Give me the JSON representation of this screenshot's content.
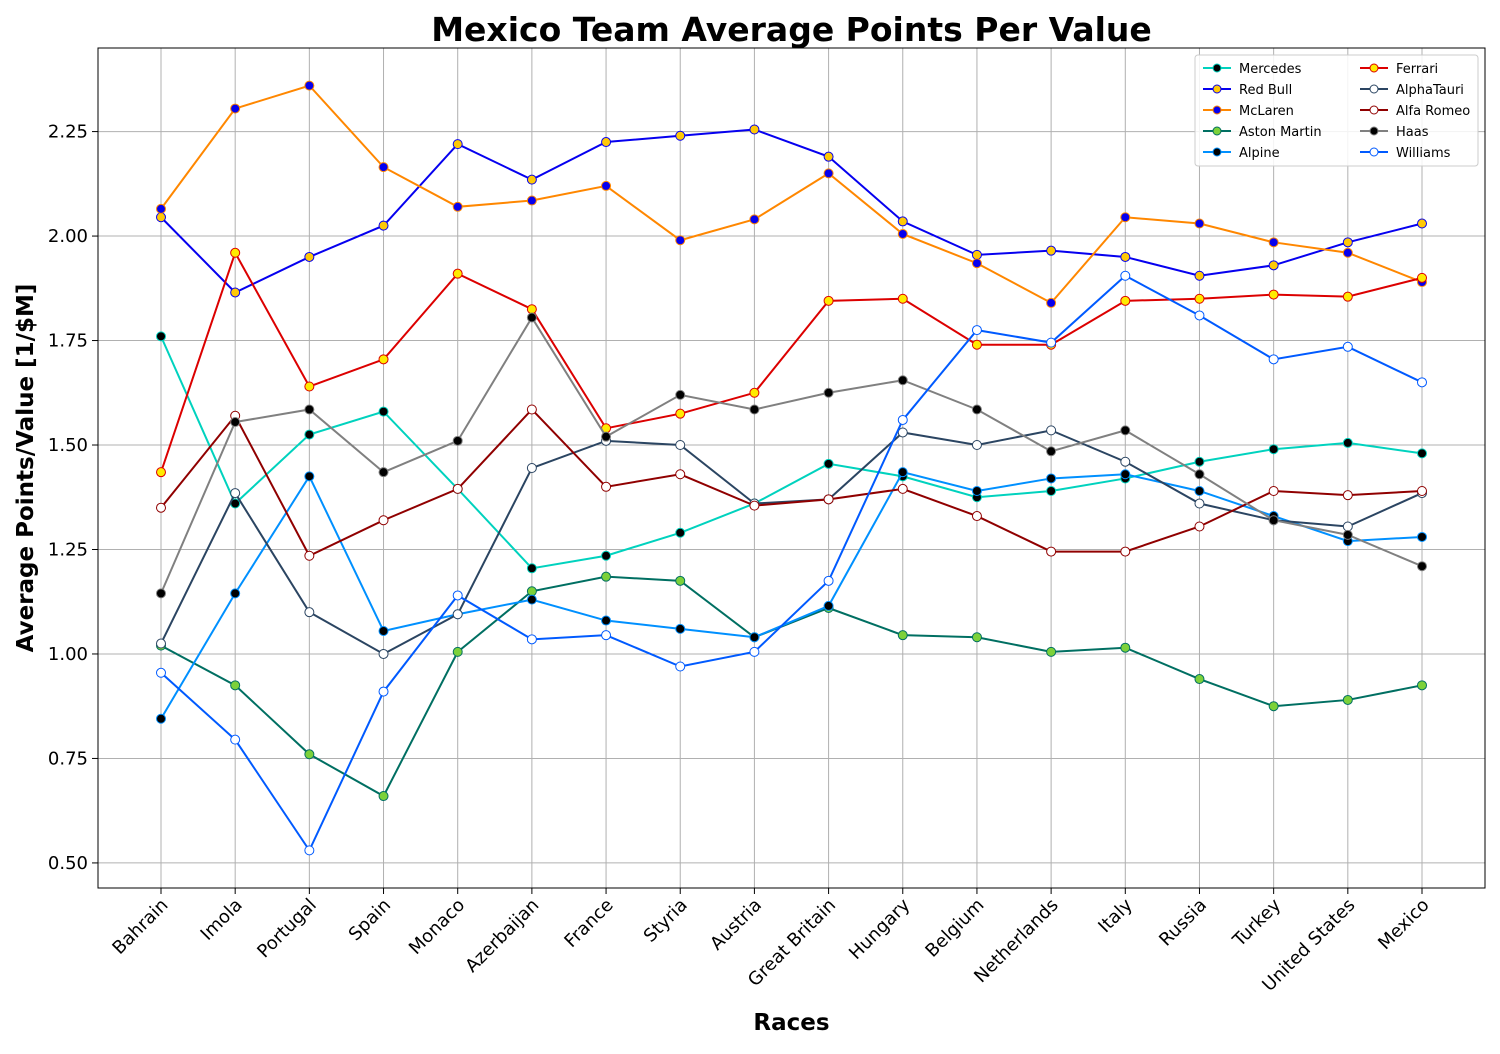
{
  "chart_data": {
    "type": "line",
    "title": "Mexico Team Average Points Per Value",
    "xlabel": "Races",
    "ylabel": "Average Points/Value [1/$M]",
    "ylim": [
      0.44,
      2.45
    ],
    "yticks": [
      "0.50",
      "0.75",
      "1.00",
      "1.25",
      "1.50",
      "1.75",
      "2.00",
      "2.25"
    ],
    "grid": true,
    "legend_position": "top-right",
    "categories": [
      "Bahrain",
      "Imola",
      "Portugal",
      "Spain",
      "Monaco",
      "Azerbaijan",
      "France",
      "Styria",
      "Austria",
      "Great Britain",
      "Hungary",
      "Belgium",
      "Netherlands",
      "Italy",
      "Russia",
      "Turkey",
      "United States",
      "Mexico"
    ],
    "series": [
      {
        "name": "Mercedes",
        "color": "#00D2BE",
        "marker_fill": "#000000",
        "marker_edge": "#00D2BE",
        "values": [
          1.76,
          1.36,
          1.525,
          1.58,
          1.395,
          1.205,
          1.235,
          1.29,
          1.36,
          1.455,
          1.425,
          1.375,
          1.39,
          1.42,
          1.46,
          1.49,
          1.505,
          1.48
        ]
      },
      {
        "name": "Red Bull",
        "color": "#0600EF",
        "marker_fill": "#FFC906",
        "marker_edge": "#0600EF",
        "values": [
          2.045,
          1.865,
          1.95,
          2.025,
          2.22,
          2.135,
          2.225,
          2.24,
          2.255,
          2.19,
          2.035,
          1.955,
          1.965,
          1.95,
          1.905,
          1.93,
          1.985,
          2.03
        ]
      },
      {
        "name": "McLaren",
        "color": "#FF8700",
        "marker_fill": "#0600EF",
        "marker_edge": "#FF8700",
        "values": [
          2.065,
          2.305,
          2.36,
          2.165,
          2.07,
          2.085,
          2.12,
          1.99,
          2.04,
          2.15,
          2.005,
          1.935,
          1.84,
          2.045,
          2.03,
          1.985,
          1.96,
          1.89
        ]
      },
      {
        "name": "Aston Martin",
        "color": "#006F62",
        "marker_fill": "#7CD13A",
        "marker_edge": "#006F62",
        "values": [
          1.02,
          0.925,
          0.76,
          0.66,
          1.005,
          1.15,
          1.185,
          1.175,
          1.04,
          1.11,
          1.045,
          1.04,
          1.005,
          1.015,
          0.94,
          0.875,
          0.89,
          0.925
        ]
      },
      {
        "name": "Alpine",
        "color": "#0090FF",
        "marker_fill": "#000000",
        "marker_edge": "#0090FF",
        "values": [
          0.845,
          1.145,
          1.425,
          1.055,
          1.095,
          1.13,
          1.08,
          1.06,
          1.04,
          1.115,
          1.435,
          1.39,
          1.42,
          1.43,
          1.39,
          1.33,
          1.27,
          1.28
        ]
      },
      {
        "name": "Ferrari",
        "color": "#DC0000",
        "marker_fill": "#FFEB00",
        "marker_edge": "#DC0000",
        "values": [
          1.435,
          1.96,
          1.64,
          1.705,
          1.91,
          1.825,
          1.54,
          1.575,
          1.625,
          1.845,
          1.85,
          1.74,
          1.74,
          1.845,
          1.85,
          1.86,
          1.855,
          1.9
        ]
      },
      {
        "name": "AlphaTauri",
        "color": "#2B4562",
        "marker_fill": "#FFFFFF",
        "marker_edge": "#2B4562",
        "values": [
          1.025,
          1.385,
          1.1,
          1.0,
          1.095,
          1.445,
          1.51,
          1.5,
          1.36,
          1.37,
          1.53,
          1.5,
          1.535,
          1.46,
          1.36,
          1.32,
          1.305,
          1.385
        ]
      },
      {
        "name": "Alfa Romeo",
        "color": "#900000",
        "marker_fill": "#FFFFFF",
        "marker_edge": "#900000",
        "values": [
          1.35,
          1.57,
          1.235,
          1.32,
          1.395,
          1.585,
          1.4,
          1.43,
          1.355,
          1.37,
          1.395,
          1.33,
          1.245,
          1.245,
          1.305,
          1.39,
          1.38,
          1.39
        ]
      },
      {
        "name": "Haas",
        "color": "#808080",
        "marker_fill": "#000000",
        "marker_edge": "#808080",
        "values": [
          1.145,
          1.555,
          1.585,
          1.435,
          1.51,
          1.805,
          1.52,
          1.62,
          1.585,
          1.625,
          1.655,
          1.585,
          1.485,
          1.535,
          1.43,
          1.32,
          1.285,
          1.21
        ]
      },
      {
        "name": "Williams",
        "color": "#005AFF",
        "marker_fill": "#FFFFFF",
        "marker_edge": "#005AFF",
        "values": [
          0.955,
          0.795,
          0.53,
          0.91,
          1.14,
          1.035,
          1.045,
          0.97,
          1.005,
          1.175,
          1.56,
          1.775,
          1.745,
          1.905,
          1.81,
          1.705,
          1.735,
          1.65
        ]
      }
    ]
  }
}
